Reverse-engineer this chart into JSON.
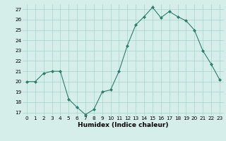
{
  "x": [
    0,
    1,
    2,
    3,
    4,
    5,
    6,
    7,
    8,
    9,
    10,
    11,
    12,
    13,
    14,
    15,
    16,
    17,
    18,
    19,
    20,
    21,
    22,
    23
  ],
  "y": [
    20,
    20,
    20.8,
    21,
    21,
    18.3,
    17.5,
    16.8,
    17.3,
    19,
    19.2,
    21,
    23.5,
    25.5,
    26.3,
    27.2,
    26.2,
    26.8,
    26.3,
    25.9,
    25,
    23,
    21.7,
    20.2
  ],
  "line_color": "#2e7d6e",
  "marker": "D",
  "marker_size": 2.0,
  "bg_color": "#d6eeea",
  "grid_color": "#a8d4cc",
  "xlabel": "Humidex (Indice chaleur)",
  "ylabel_ticks": [
    17,
    18,
    19,
    20,
    21,
    22,
    23,
    24,
    25,
    26,
    27
  ],
  "ylim": [
    16.7,
    27.5
  ],
  "xlim": [
    -0.5,
    23.5
  ],
  "xlabel_fontsize": 6.5,
  "tick_fontsize": 5.2
}
